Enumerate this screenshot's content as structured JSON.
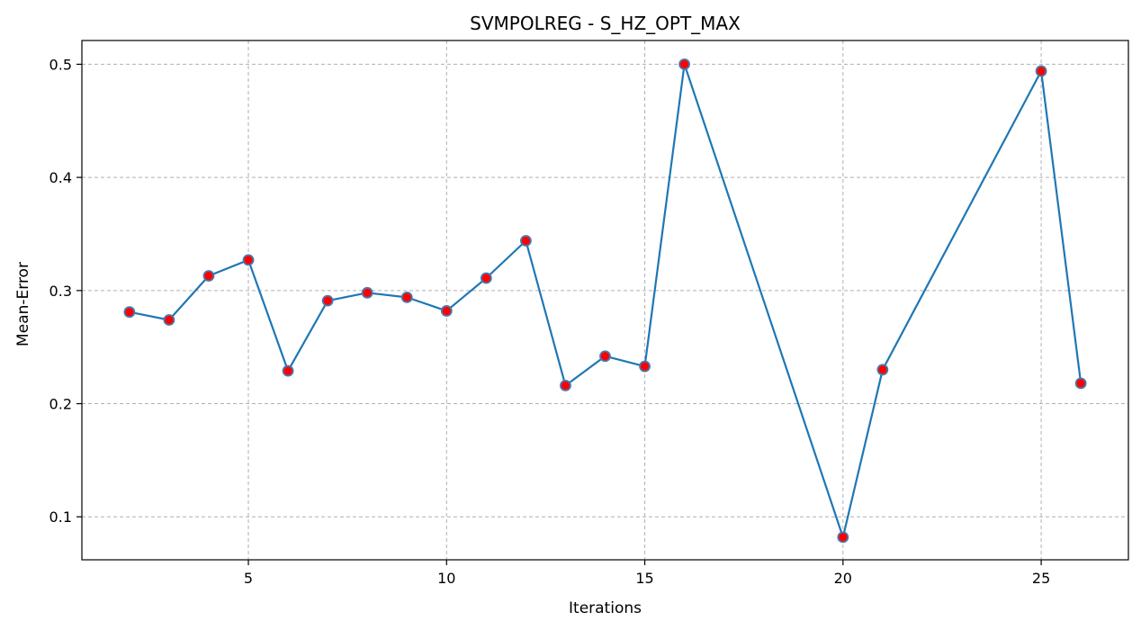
{
  "chart_data": {
    "type": "line",
    "title": "SVMPOLREG - S_HZ_OPT_MAX",
    "xlabel": "Iterations",
    "ylabel": "Mean-Error",
    "xlim": [
      0.8,
      27.2
    ],
    "ylim": [
      0.062,
      0.521
    ],
    "x_ticks": [
      5,
      10,
      15,
      20,
      25
    ],
    "y_ticks": [
      0.1,
      0.2,
      0.3,
      0.4,
      0.5
    ],
    "x_tick_labels": [
      "5",
      "10",
      "15",
      "20",
      "25"
    ],
    "y_tick_labels": [
      "0.1",
      "0.2",
      "0.3",
      "0.4",
      "0.5"
    ],
    "grid": true,
    "grid_style": "dashed",
    "series": [
      {
        "x": [
          2,
          3,
          4,
          5,
          6,
          7,
          8,
          9,
          10,
          11,
          12,
          13,
          14,
          15,
          16,
          20,
          21,
          25,
          26
        ],
        "y": [
          0.281,
          0.274,
          0.313,
          0.327,
          0.229,
          0.291,
          0.298,
          0.294,
          0.282,
          0.311,
          0.344,
          0.216,
          0.242,
          0.233,
          0.5,
          0.082,
          0.23,
          0.494,
          0.218
        ],
        "line_color": "#1f77b4",
        "marker_fill": "#ff0000",
        "marker_edge": "#4a78b0"
      }
    ],
    "colors": {
      "line": "#1f77b4",
      "marker_fill": "#ff0000",
      "grid": "#b0b0b0",
      "axes": "#000000"
    }
  }
}
